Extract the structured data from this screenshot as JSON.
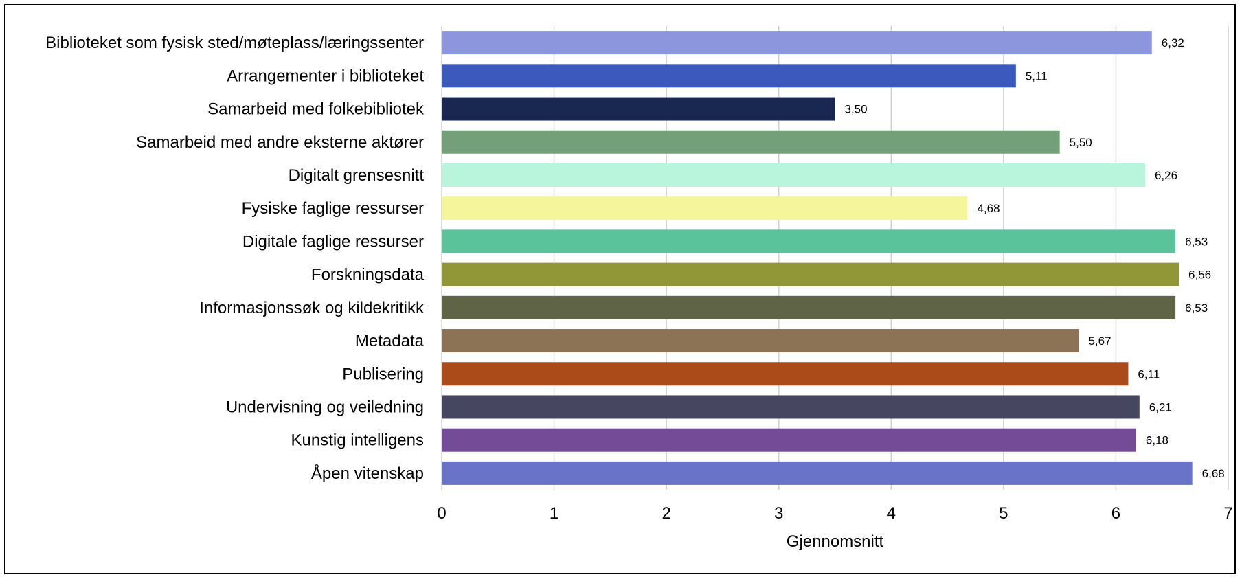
{
  "chart_data": {
    "type": "bar",
    "orientation": "horizontal",
    "title": "",
    "xlabel": "Gjennomsnitt",
    "ylabel": "",
    "xlim": [
      0,
      7
    ],
    "xticks": [
      0,
      1,
      2,
      3,
      4,
      5,
      6,
      7
    ],
    "grid": true,
    "legend": "none",
    "categories": [
      "Biblioteket som fysisk sted/møteplass/læringssenter",
      "Arrangementer i biblioteket",
      "Samarbeid med folkebibliotek",
      "Samarbeid med andre eksterne aktører",
      "Digitalt grensesnitt",
      "Fysiske faglige ressurser",
      "Digitale faglige ressurser",
      "Forskningsdata",
      "Informasjonssøk og kildekritikk",
      "Metadata",
      "Publisering",
      "Undervisning og veiledning",
      "Kunstig intelligens",
      "Åpen vitenskap"
    ],
    "values": [
      6.32,
      5.11,
      3.5,
      5.5,
      6.26,
      4.68,
      6.53,
      6.56,
      6.53,
      5.67,
      6.11,
      6.21,
      6.18,
      6.68
    ],
    "value_labels": [
      "6,32",
      "5,11",
      "3,50",
      "5,50",
      "6,26",
      "4,68",
      "6,53",
      "6,56",
      "6,53",
      "5,67",
      "6,11",
      "6,21",
      "6,18",
      "6,68"
    ],
    "colors": [
      "#8c96dc",
      "#3c5abe",
      "#192850",
      "#73a078",
      "#b9f5dc",
      "#f5f59b",
      "#5ac39b",
      "#919637",
      "#5f6446",
      "#8c7355",
      "#aa4b19",
      "#464660",
      "#734b96",
      "#6973c8"
    ]
  }
}
